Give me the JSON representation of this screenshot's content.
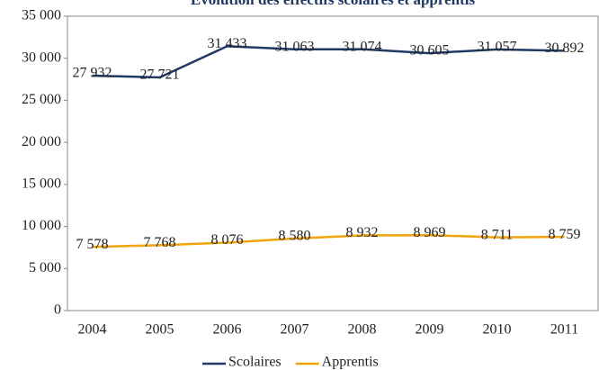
{
  "chart_data": {
    "type": "line",
    "title": "Évolution des effectifs scolaires et apprentis",
    "categories": [
      "2004",
      "2005",
      "2006",
      "2007",
      "2008",
      "2009",
      "2010",
      "2011"
    ],
    "series": [
      {
        "name": "Scolaires",
        "color": "#1f3864",
        "values": [
          27932,
          27721,
          31433,
          31063,
          31074,
          30605,
          31057,
          30892
        ],
        "value_labels": [
          "27 932",
          "27 721",
          "31 433",
          "31 063",
          "31 074",
          "30 605",
          "31 057",
          "30 892"
        ]
      },
      {
        "name": "Apprentis",
        "color": "#f0a30a",
        "values": [
          7578,
          7768,
          8076,
          8580,
          8932,
          8969,
          8711,
          8759
        ],
        "value_labels": [
          "7 578",
          "7 768",
          "8 076",
          "8 580",
          "8 932",
          "8 969",
          "8 711",
          "8 759"
        ]
      }
    ],
    "ylim": [
      0,
      35000
    ],
    "yticks": [
      0,
      {
        "value": 5000,
        "label": "5 000"
      },
      {
        "value": 10000,
        "label": "10 000"
      },
      {
        "value": 15000,
        "label": "15 000"
      },
      {
        "value": 20000,
        "label": "20 000"
      },
      {
        "value": 25000,
        "label": "25 000"
      },
      {
        "value": 30000,
        "label": "30 000"
      },
      {
        "value": 35000,
        "label": "35 000"
      }
    ],
    "grid": false,
    "legend": "bottom"
  }
}
